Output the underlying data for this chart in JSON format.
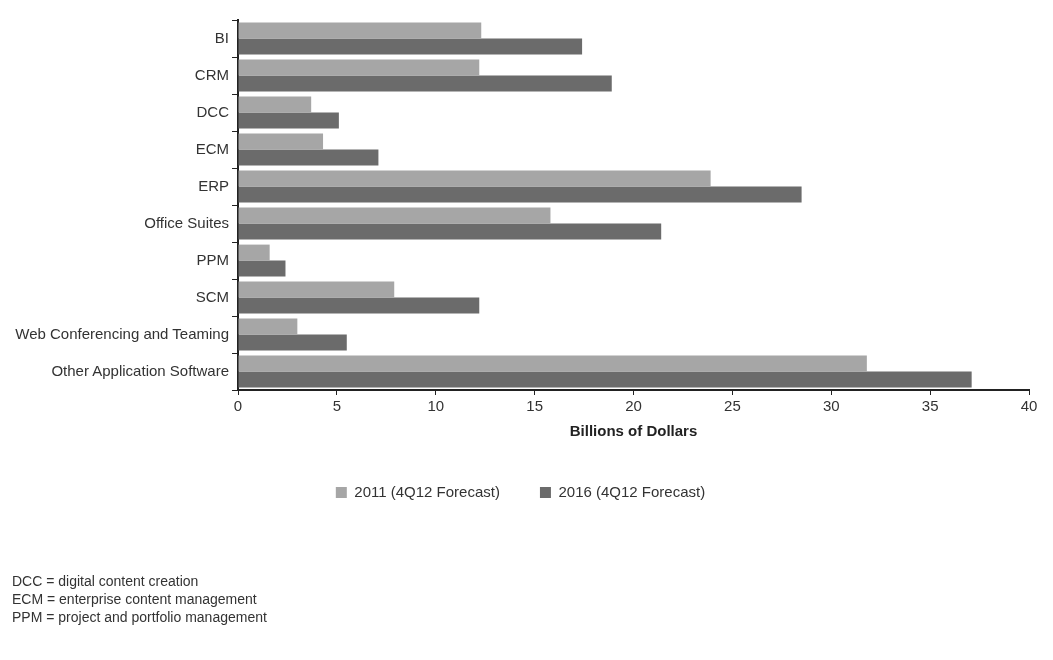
{
  "chart_data": {
    "type": "bar",
    "orientation": "horizontal",
    "categories": [
      "BI",
      "CRM",
      "DCC",
      "ECM",
      "ERP",
      "Office Suites",
      "PPM",
      "SCM",
      "Web Conferencing and Teaming",
      "Other Application Software"
    ],
    "series": [
      {
        "name": "2011 (4Q12 Forecast)",
        "color": "#a6a6a6",
        "values": [
          12.3,
          12.2,
          3.7,
          4.3,
          23.9,
          15.8,
          1.6,
          7.9,
          3.0,
          31.8
        ]
      },
      {
        "name": "2016 (4Q12 Forecast)",
        "color": "#6b6b6b",
        "values": [
          17.4,
          18.9,
          5.1,
          7.1,
          28.5,
          21.4,
          2.4,
          12.2,
          5.5,
          37.1
        ]
      }
    ],
    "xlim": [
      0,
      40
    ],
    "xticks": [
      0,
      5,
      10,
      15,
      20,
      25,
      30,
      35,
      40
    ],
    "xlabel": "Billions of Dollars",
    "legend": "bottom",
    "grid": false,
    "annotations": [
      "DCC = digital content creation",
      "ECM = enterprise content management",
      "PPM = project and portfolio management"
    ]
  }
}
